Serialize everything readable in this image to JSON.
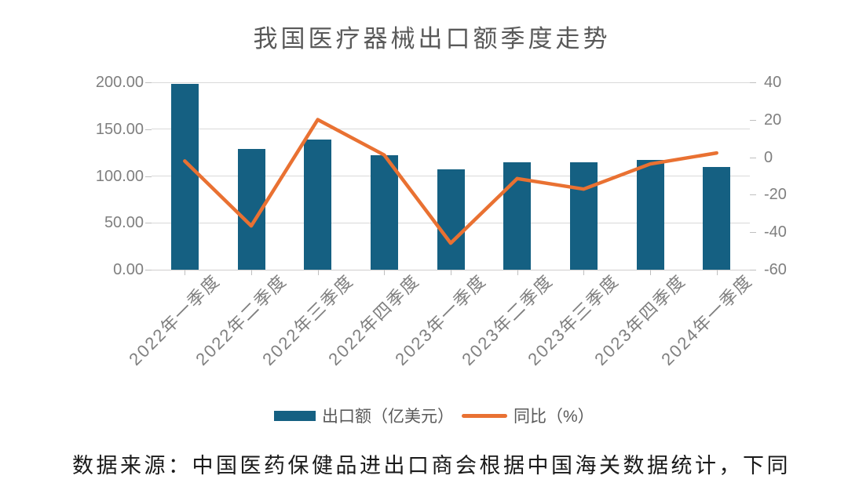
{
  "title": "我国医疗器械出口额季度走势",
  "source_note": "数据来源：中国医药保健品进出口商会根据中国海关数据统计，下同",
  "colors": {
    "bar": "#156082",
    "line": "#E97132",
    "gridline": "#d9d9d9",
    "axis_line": "#d0cece",
    "tick_mark": "#bfbfbf",
    "axis_text": "#7f7f7f",
    "title_text": "#595959",
    "legend_text": "#595959",
    "source_text": "#1a1a1a"
  },
  "chart_data": {
    "type": "combo",
    "title": "我国医疗器械出口额季度走势",
    "grid": "horizontal gridlines at left-axis intervals",
    "legend_position": "bottom",
    "categories": [
      "2022年一季度",
      "2022年二季度",
      "2022年三季度",
      "2022年四季度",
      "2023年一季度",
      "2023年二季度",
      "2023年三季度",
      "2023年四季度",
      "2024年一季度"
    ],
    "series": [
      {
        "name": "出口额（亿美元）",
        "type": "bar",
        "axis": "left",
        "color": "#156082",
        "values": [
          198.0,
          129.0,
          138.5,
          122.5,
          107.0,
          115.0,
          115.0,
          117.5,
          109.5
        ]
      },
      {
        "name": "同比（%）",
        "type": "line",
        "axis": "right",
        "color": "#E97132",
        "values": [
          -2.0,
          -36.6,
          20.1,
          1.2,
          -45.8,
          -11.4,
          -17.0,
          -3.6,
          2.3
        ]
      }
    ],
    "left_axis": {
      "min": 0,
      "max": 200,
      "ticks": [
        200,
        150,
        100,
        50,
        0
      ],
      "tick_labels": [
        "200.00",
        "150.00",
        "100.00",
        "50.00",
        "0.00"
      ]
    },
    "right_axis": {
      "min": -60,
      "max": 40,
      "ticks": [
        40,
        20,
        0,
        -20,
        -40,
        -60
      ],
      "tick_labels": [
        "40",
        "20",
        "0",
        "-20",
        "-40",
        "-60"
      ]
    }
  }
}
